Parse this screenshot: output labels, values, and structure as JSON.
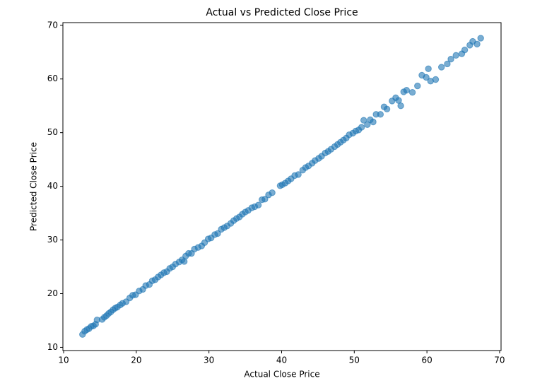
{
  "chart_data": {
    "type": "scatter",
    "title": "Actual vs Predicted Close Price",
    "x_label": "Actual Close Price",
    "y_label": "Predicted Close Price",
    "color": "#1f77b4",
    "opacity": 0.6,
    "xlim": [
      9.9,
      70.2
    ],
    "ylim": [
      9.4,
      70.5
    ],
    "xticks": [
      10,
      20,
      30,
      40,
      50,
      60,
      70
    ],
    "yticks": [
      10,
      20,
      30,
      40,
      50,
      60,
      70
    ],
    "grid": false,
    "x": [
      12.6,
      12.9,
      13.2,
      13.5,
      13.8,
      14.1,
      14.4,
      14.6,
      15.3,
      15.6,
      15.9,
      16.2,
      16.5,
      16.8,
      17.1,
      17.4,
      17.8,
      18.1,
      18.6,
      19.1,
      19.5,
      19.9,
      20.4,
      20.9,
      21.3,
      21.8,
      22.2,
      22.6,
      23.0,
      23.4,
      23.8,
      24.2,
      24.6,
      25.0,
      25.4,
      25.9,
      26.3,
      26.6,
      26.8,
      27.2,
      27.6,
      28.0,
      28.5,
      29.0,
      29.4,
      29.9,
      30.3,
      30.8,
      31.2,
      31.7,
      32.1,
      32.5,
      33.0,
      33.4,
      33.8,
      34.2,
      34.6,
      35.0,
      35.4,
      35.9,
      36.3,
      36.8,
      37.3,
      37.7,
      38.2,
      38.7,
      39.8,
      40.1,
      40.5,
      40.9,
      41.3,
      41.8,
      42.3,
      42.9,
      43.3,
      43.7,
      44.2,
      44.6,
      45.1,
      45.5,
      46.0,
      46.4,
      46.8,
      47.3,
      47.7,
      48.1,
      48.5,
      48.9,
      49.3,
      49.8,
      50.2,
      50.6,
      51.0,
      51.3,
      51.8,
      52.2,
      52.6,
      53.0,
      53.6,
      54.1,
      54.5,
      55.2,
      55.7,
      56.1,
      56.4,
      56.8,
      57.2,
      58.0,
      58.7,
      59.3,
      59.9,
      60.2,
      60.5,
      61.2,
      62.0,
      62.8,
      63.3,
      64.0,
      64.8,
      65.2,
      65.9,
      66.3,
      66.9,
      67.4
    ],
    "values": [
      12.4,
      13.0,
      13.3,
      13.5,
      13.9,
      14.0,
      14.3,
      15.1,
      15.2,
      15.6,
      15.9,
      16.3,
      16.6,
      17.0,
      17.3,
      17.5,
      17.9,
      18.2,
      18.5,
      19.2,
      19.7,
      19.8,
      20.5,
      20.8,
      21.5,
      21.7,
      22.4,
      22.6,
      23.1,
      23.5,
      23.9,
      24.1,
      24.7,
      25.0,
      25.5,
      25.9,
      26.3,
      26.0,
      27.0,
      27.5,
      27.5,
      28.3,
      28.6,
      28.9,
      29.5,
      30.2,
      30.4,
      31.0,
      31.2,
      32.0,
      32.3,
      32.6,
      33.1,
      33.6,
      34.0,
      34.3,
      34.8,
      35.2,
      35.5,
      36.0,
      36.2,
      36.5,
      37.5,
      37.6,
      38.4,
      38.8,
      40.1,
      40.3,
      40.6,
      41.0,
      41.4,
      42.0,
      42.2,
      43.0,
      43.5,
      43.8,
      44.3,
      44.8,
      45.2,
      45.6,
      46.2,
      46.5,
      46.9,
      47.4,
      47.8,
      48.2,
      48.6,
      49.0,
      49.6,
      49.9,
      50.3,
      50.5,
      51.0,
      52.3,
      51.5,
      52.4,
      52.0,
      53.4,
      53.4,
      54.8,
      54.4,
      55.9,
      56.5,
      56.0,
      55.0,
      57.6,
      57.9,
      57.5,
      58.7,
      60.7,
      60.3,
      61.9,
      59.6,
      59.9,
      62.2,
      62.8,
      63.7,
      64.4,
      64.7,
      65.4,
      66.3,
      67.0,
      66.5,
      67.6
    ]
  }
}
